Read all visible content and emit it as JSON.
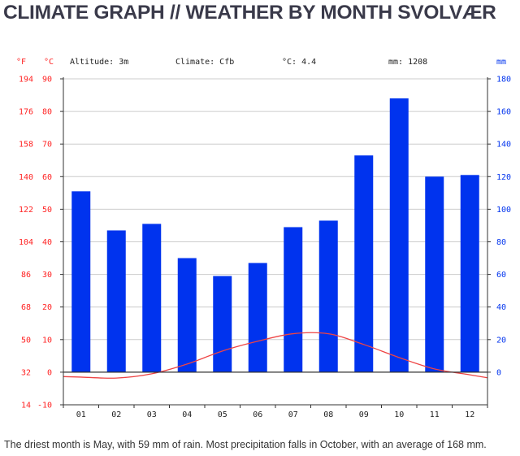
{
  "page": {
    "title": "CLIMATE GRAPH // WEATHER BY MONTH SVOLVÆR",
    "caption": "The driest month is May, with 59 mm of rain. Most precipitation falls in October, with an average of 168 mm."
  },
  "info": {
    "altitude": "Altitude: 3m",
    "climate": "Climate: Cfb",
    "avg_temp": "°C: 4.4",
    "precip": "mm: 1208"
  },
  "colors": {
    "bars": "#0033ee",
    "temperature": "#ee4444",
    "left_axis": "#ff2222",
    "right_axis": "#0033ee"
  },
  "chart_data": {
    "type": "bar",
    "categories": [
      "01",
      "02",
      "03",
      "04",
      "05",
      "06",
      "07",
      "08",
      "09",
      "10",
      "11",
      "12"
    ],
    "series": [
      {
        "unit": "mm",
        "axis": "right",
        "type": "bar",
        "values": [
          111,
          87,
          91,
          70,
          59,
          67,
          89,
          93,
          133,
          168,
          120,
          121
        ]
      },
      {
        "unit": "°C",
        "axis": "left",
        "type": "line",
        "values": [
          -1.5,
          -1.8,
          -0.5,
          2.5,
          6.5,
          9.5,
          11.8,
          11.8,
          8.5,
          4.5,
          1.0,
          -0.8
        ]
      }
    ],
    "y_left": {
      "unit_c": "°C",
      "unit_f": "°F",
      "range": [
        -10,
        90
      ],
      "ticks_c": [
        90,
        80,
        70,
        60,
        50,
        40,
        30,
        20,
        10,
        0,
        -10
      ],
      "ticks_f": [
        194,
        176,
        158,
        140,
        122,
        104,
        86,
        68,
        50,
        32,
        14
      ]
    },
    "y_right": {
      "unit": "mm",
      "range": [
        -20,
        180
      ],
      "ticks": [
        180,
        160,
        140,
        120,
        100,
        80,
        60,
        40,
        20,
        0
      ]
    },
    "grid": true
  }
}
